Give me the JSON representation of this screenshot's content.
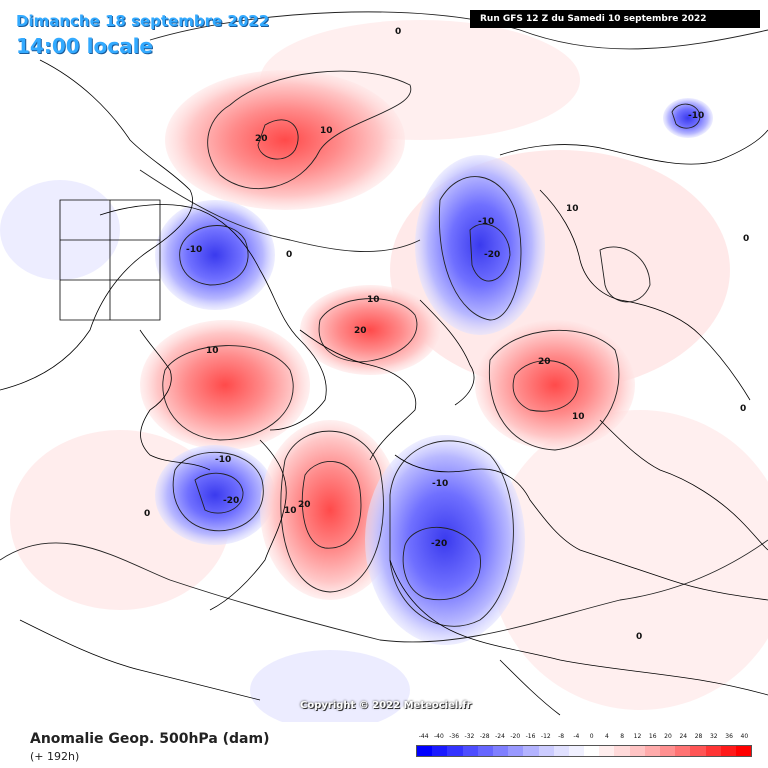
{
  "header": {
    "date": "Dimanche 18 septembre 2022",
    "time": "14:00 locale",
    "run": "Run GFS 12 Z du Samedi 10 septembre 2022"
  },
  "footer": {
    "variable": "Anomalie Geop. 500hPa (dam)",
    "lead": "(+ 192h)",
    "copyright": "Copyright © 2022 Meteociel.fr"
  },
  "scale": {
    "labels": [
      "-44",
      "-40",
      "-36",
      "-32",
      "-28",
      "-24",
      "-20",
      "-16",
      "-12",
      "-8",
      "-4",
      "0",
      "4",
      "8",
      "12",
      "16",
      "20",
      "24",
      "28",
      "32",
      "36",
      "40"
    ],
    "colors": [
      "#0000ff",
      "#1a1aff",
      "#3333ff",
      "#4d4dff",
      "#6666ff",
      "#7f7fff",
      "#9999ff",
      "#b3b3ff",
      "#ccccff",
      "#e0e0ff",
      "#f0f0ff",
      "#ffffff",
      "#ffeeee",
      "#ffdada",
      "#ffc4c4",
      "#ffabab",
      "#ff9090",
      "#ff7373",
      "#ff5555",
      "#ff3535",
      "#ff1a1a",
      "#ff0000"
    ]
  },
  "contour_labels": [
    "0",
    "10",
    "20",
    "-10",
    "-20"
  ],
  "colors": {
    "positive": "#ff7070",
    "negative": "#6f6fff",
    "title": "#33aaff"
  }
}
